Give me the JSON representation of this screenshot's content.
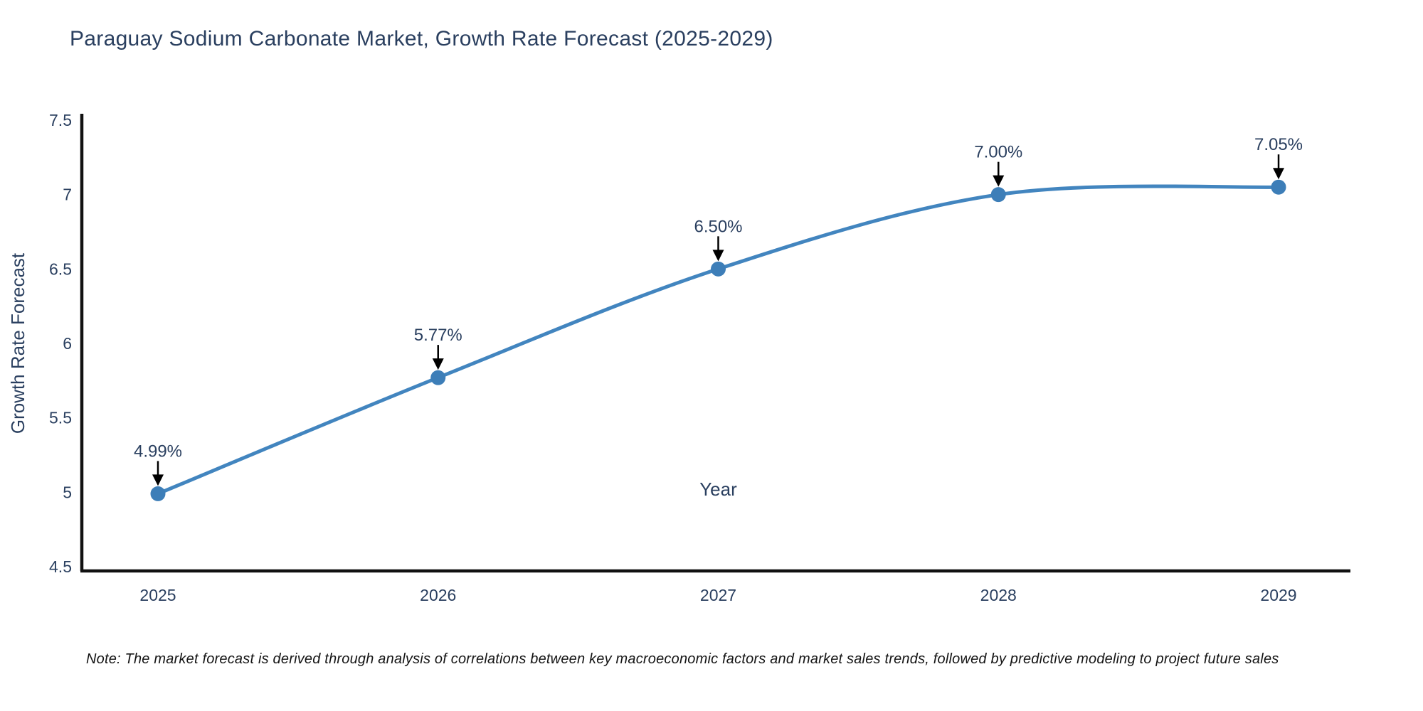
{
  "title": "Paraguay Sodium Carbonate Market, Growth Rate Forecast (2025-2029)",
  "note": "Note: The market forecast is derived through analysis of correlations between key macroeconomic factors and market sales trends, followed by predictive modeling to project future sales",
  "chart_data": {
    "type": "line",
    "curve": "spline",
    "title": "Paraguay Sodium Carbonate Market, Growth Rate Forecast (2025-2029)",
    "xlabel": "Year",
    "ylabel": "Growth Rate Forecast",
    "categories": [
      "2025",
      "2026",
      "2027",
      "2028",
      "2029"
    ],
    "values": [
      4.99,
      5.77,
      6.5,
      7.0,
      7.05
    ],
    "point_labels": [
      "4.99%",
      "5.77%",
      "6.50%",
      "7.00%",
      "7.05%"
    ],
    "ylim": [
      4.5,
      7.5
    ],
    "yticks": [
      4.5,
      5,
      5.5,
      6,
      6.5,
      7,
      7.5
    ],
    "grid": false,
    "legend_position": "none",
    "colors": {
      "line": "#4285bf",
      "marker": "#3d7eb8",
      "axis": "#111111",
      "text": "#2a3f5f",
      "annotation_arrow": "#000000"
    }
  }
}
